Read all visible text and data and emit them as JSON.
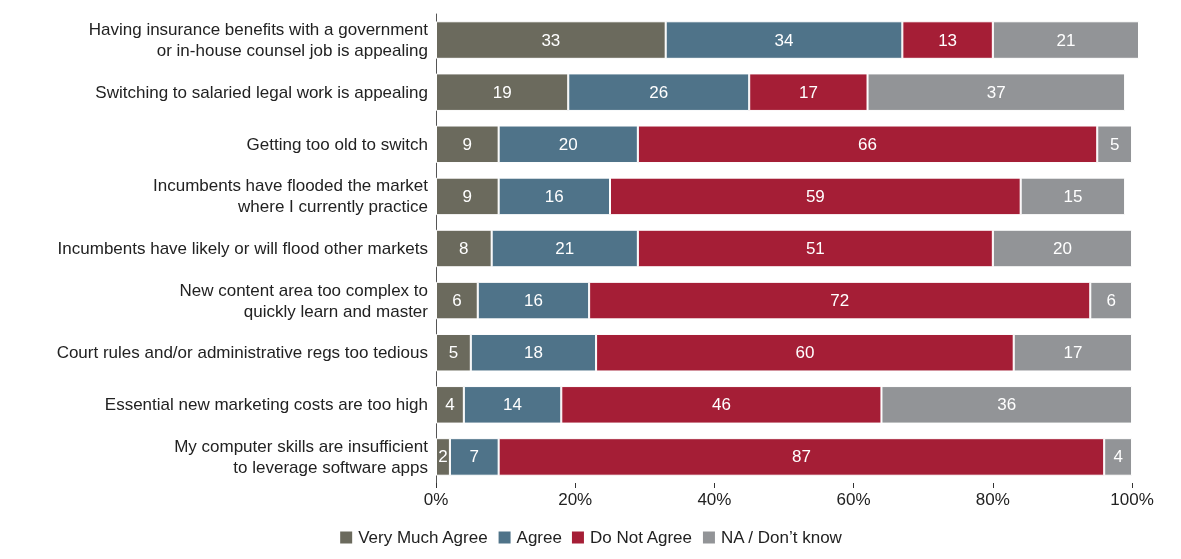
{
  "chart_data": {
    "type": "bar",
    "orientation": "horizontal",
    "stacked": true,
    "data_labels": true,
    "grid": false,
    "legend": "bottom",
    "categories": [
      "Having insurance benefits with a government\nor in-house counsel job is appealing",
      "Switching to salaried legal work is appealing",
      "Getting too old to switch",
      "Incumbents have flooded the market\nwhere I currently practice",
      "Incumbents have likely or will flood other markets",
      "New content area too complex to\nquickly learn and master",
      "Court rules and/or administrative regs too tedious",
      "Essential new marketing costs are too high",
      "My computer skills are insufficient\nto leverage software apps"
    ],
    "series": [
      {
        "name": "Very Much Agree",
        "color": "#6b6a5d",
        "values": [
          33,
          19,
          9,
          9,
          8,
          6,
          5,
          4,
          2
        ]
      },
      {
        "name": "Agree",
        "color": "#4f7389",
        "values": [
          34,
          26,
          20,
          16,
          21,
          16,
          18,
          14,
          7
        ]
      },
      {
        "name": "Do Not Agree",
        "color": "#a51e36",
        "values": [
          13,
          17,
          66,
          59,
          51,
          72,
          60,
          46,
          87
        ]
      },
      {
        "name": "NA / Don’t know",
        "color": "#929497",
        "values": [
          21,
          37,
          5,
          15,
          20,
          6,
          17,
          36,
          4
        ]
      }
    ],
    "xlim": [
      0,
      101
    ],
    "xticks": [
      {
        "value": 0,
        "label": "0%"
      },
      {
        "value": 20,
        "label": "20%"
      },
      {
        "value": 40,
        "label": "40%"
      },
      {
        "value": 60,
        "label": "60%"
      },
      {
        "value": 80,
        "label": "80%"
      },
      {
        "value": 100,
        "label": "100%"
      }
    ]
  }
}
